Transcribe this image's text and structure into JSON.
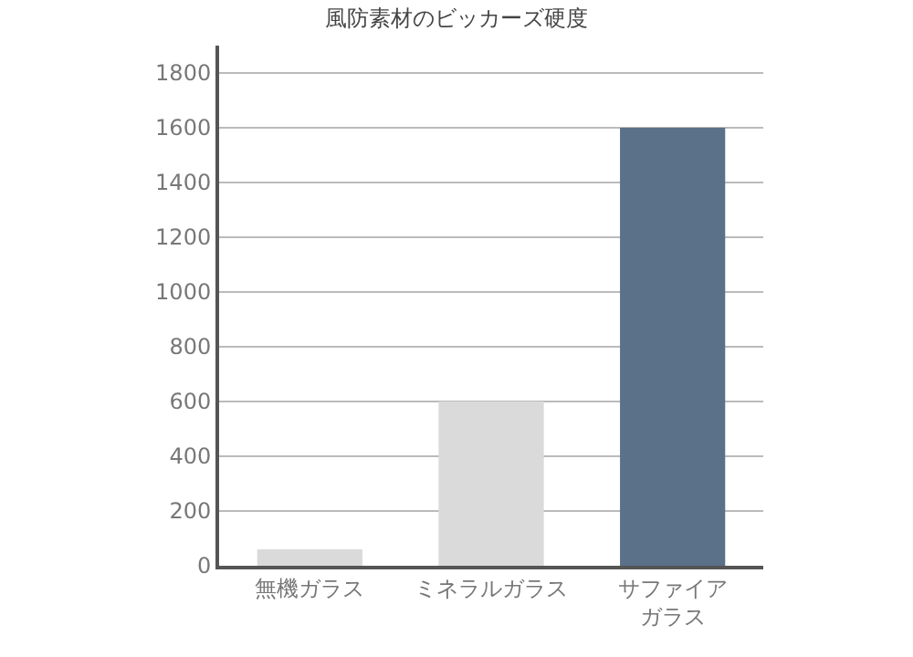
{
  "chart_data": {
    "type": "bar",
    "title": "風防素材のビッカーズ硬度",
    "categories": [
      "無機ガラス",
      "ミネラルガラス",
      "サファイアガラス"
    ],
    "values": [
      60,
      600,
      1600
    ],
    "colors": [
      "#dadada",
      "#dadada",
      "#5b7089"
    ],
    "ylim": [
      0,
      1900
    ],
    "yticks": [
      0,
      200,
      400,
      600,
      800,
      1000,
      1200,
      1400,
      1600,
      1800
    ],
    "grid": "y"
  }
}
